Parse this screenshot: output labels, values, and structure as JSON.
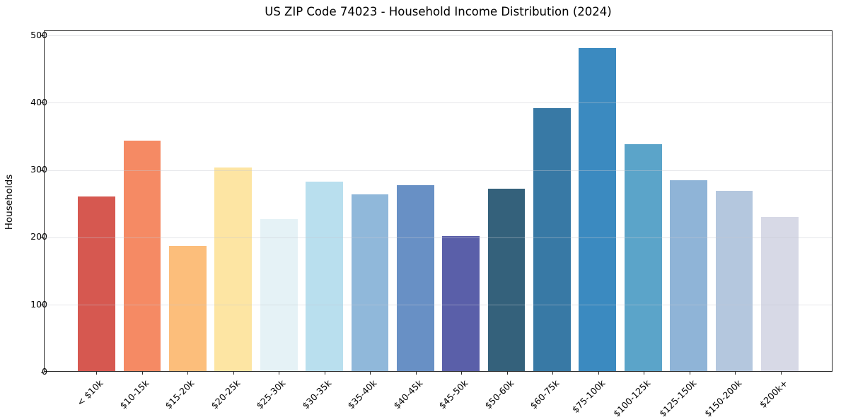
{
  "chart_data": {
    "type": "bar",
    "title": "US ZIP Code 74023 - Household Income Distribution (2024)",
    "xlabel": "",
    "ylabel": "Households",
    "categories": [
      "< $10k",
      "$10-15k",
      "$15-20k",
      "$20-25k",
      "$25-30k",
      "$30-35k",
      "$35-40k",
      "$40-45k",
      "$45-50k",
      "$50-60k",
      "$60-75k",
      "$75-100k",
      "$100-125k",
      "$125-150k",
      "$150-200k",
      "$200k+"
    ],
    "values": [
      260,
      344,
      187,
      304,
      227,
      282,
      264,
      277,
      201,
      272,
      392,
      482,
      338,
      285,
      269,
      230
    ],
    "bar_colors": [
      "#d65850",
      "#f58a64",
      "#fcbe7b",
      "#fde5a3",
      "#e5f2f6",
      "#b9dfee",
      "#90b8da",
      "#6890c5",
      "#5a5fa9",
      "#34617b",
      "#3879a5",
      "#3b8ac0",
      "#5ba4c9",
      "#8fb4d7",
      "#b4c7de",
      "#d7d9e6"
    ],
    "ylim": [
      0,
      507
    ],
    "yticks": [
      0,
      100,
      200,
      300,
      400,
      500
    ],
    "grid": "horizontal-only",
    "grid_color": "#e6e6ec",
    "legend": "none",
    "background_color": "#ffffff",
    "spine_color": "#2a2a2a",
    "x_tick_label_rotation_deg": 45
  }
}
